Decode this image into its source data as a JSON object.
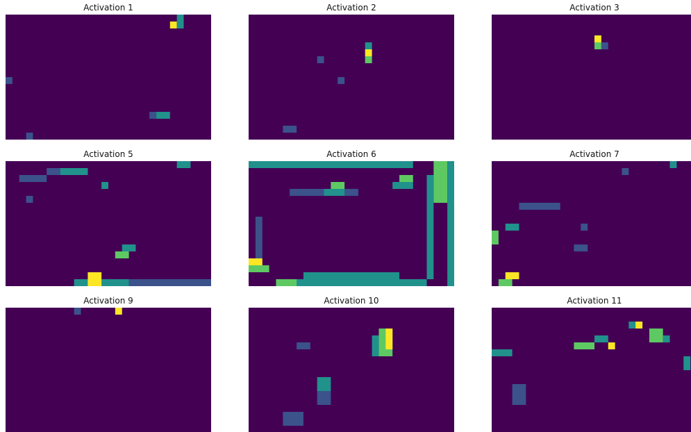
{
  "panels": [
    {
      "title": "Activation 1"
    },
    {
      "title": "Activation 2"
    },
    {
      "title": "Activation 3"
    },
    {
      "title": "Activation 5"
    },
    {
      "title": "Activation 6"
    },
    {
      "title": "Activation 7"
    },
    {
      "title": "Activation 9"
    },
    {
      "title": "Activation 10"
    },
    {
      "title": "Activation 11"
    }
  ]
}
